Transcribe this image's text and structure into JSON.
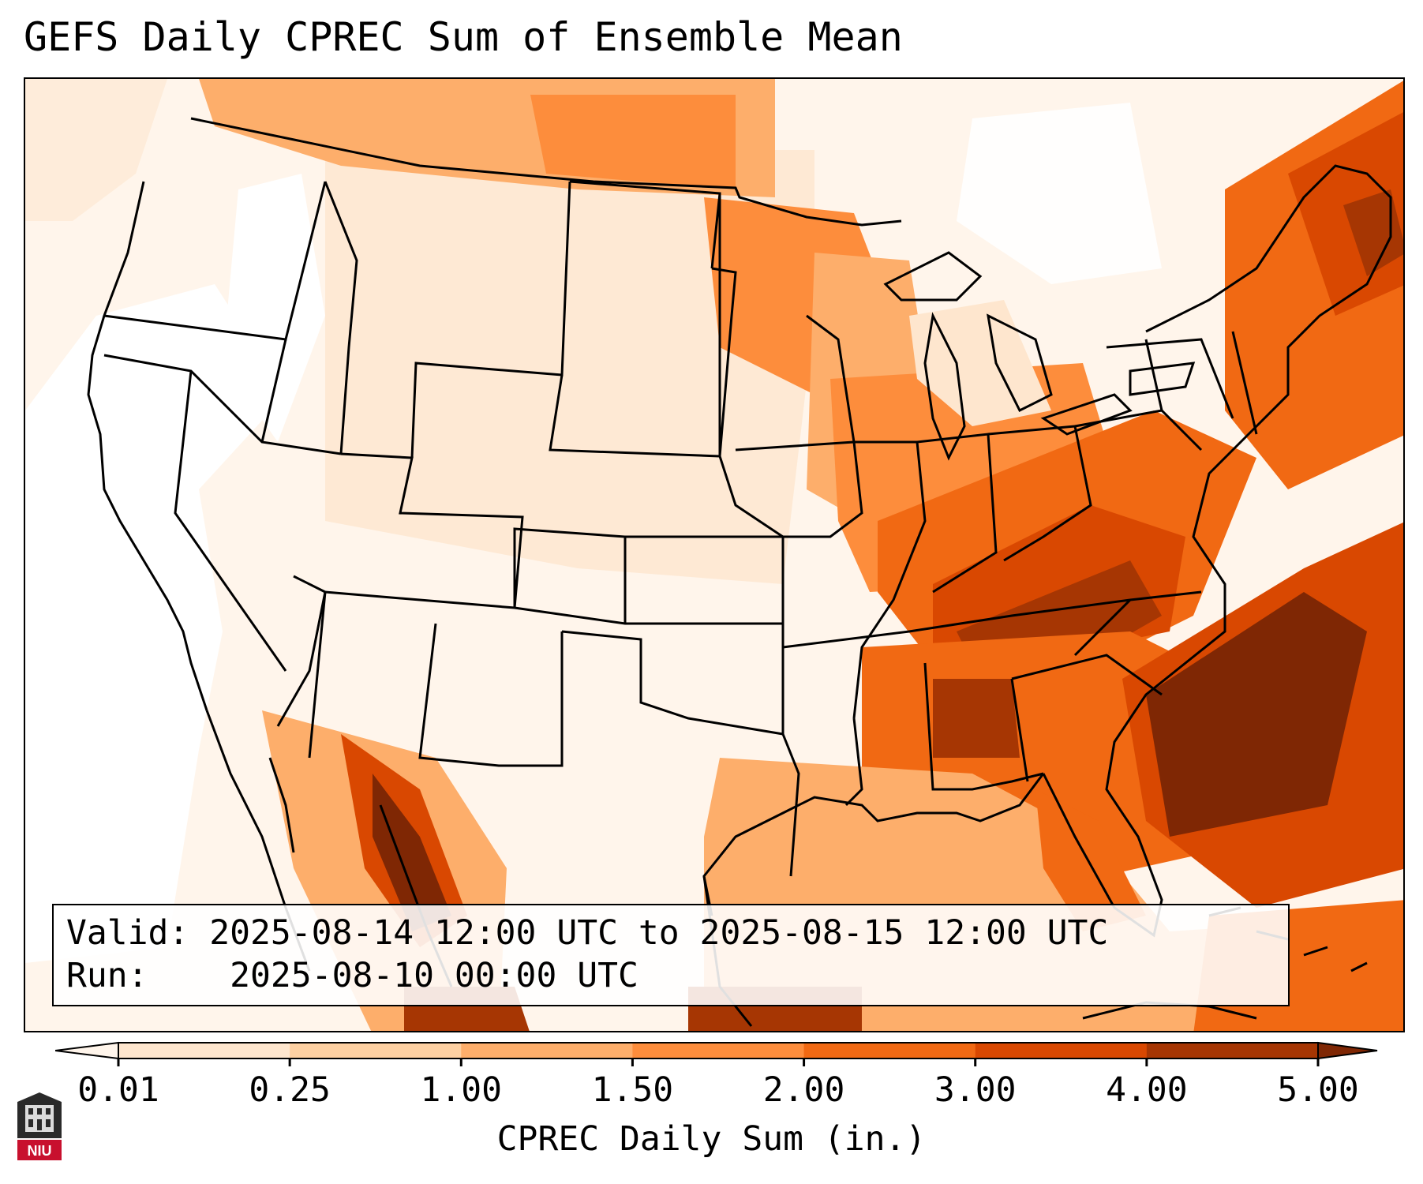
{
  "title": "GEFS Daily CPREC Sum of Ensemble Mean",
  "info": {
    "valid_label": "Valid:",
    "valid_value": "2025-08-14 12:00 UTC to 2025-08-15 12:00 UTC",
    "run_label": "Run:",
    "run_value": "2025-08-10 00:00 UTC"
  },
  "colorbar": {
    "label": "CPREC Daily Sum (in.)",
    "ticks": [
      "0.01",
      "0.25",
      "1.00",
      "1.50",
      "2.00",
      "3.00",
      "4.00",
      "5.00"
    ],
    "colors": [
      "#fff5eb",
      "#fee6ce",
      "#fdd0a2",
      "#fdae6b",
      "#fd8d3c",
      "#f16913",
      "#d94801",
      "#a63603",
      "#7f2704"
    ]
  },
  "logo": {
    "text": "NIU",
    "icon": "university-logo-icon"
  }
}
